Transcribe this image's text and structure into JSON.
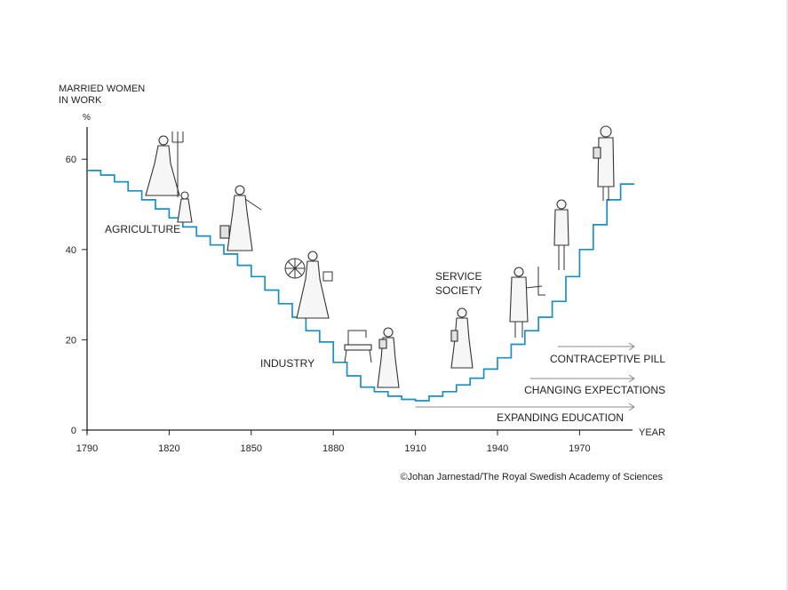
{
  "chart_data": {
    "type": "line",
    "step": true,
    "ylabel_line1": "MARRIED WOMEN",
    "ylabel_line2": "IN WORK",
    "yunit": "%",
    "xlabel": "YEAR",
    "xlim": [
      1790,
      2000
    ],
    "ylim": [
      0,
      70
    ],
    "xticks": [
      "1790",
      "1820",
      "1850",
      "1880",
      "1910",
      "1940",
      "1970"
    ],
    "yticks": [
      "0",
      "20",
      "40",
      "60"
    ],
    "line_color": "#1a8fc4",
    "series": [
      {
        "x": [
          1790,
          1795,
          1800,
          1805,
          1810,
          1815,
          1820,
          1825,
          1830,
          1835,
          1840,
          1845,
          1850,
          1855,
          1860,
          1865,
          1870,
          1875,
          1880,
          1885,
          1890,
          1895,
          1900,
          1905,
          1910,
          1915,
          1920,
          1925,
          1930,
          1935,
          1940,
          1945,
          1950,
          1955,
          1960,
          1965,
          1970,
          1975,
          1980,
          1985
        ],
        "y": [
          57.5,
          56.5,
          55,
          53,
          51,
          49,
          47,
          45,
          43,
          41,
          39,
          36.5,
          34,
          31,
          28,
          25,
          22,
          19.5,
          15,
          12,
          9.5,
          8.5,
          7.5,
          6.8,
          6.5,
          7.5,
          8.5,
          10,
          11.5,
          13.5,
          16,
          19,
          22,
          25,
          28.5,
          34,
          40,
          45.5,
          51,
          54.5
        ]
      }
    ],
    "annotations": [
      {
        "text": "AGRICULTURE",
        "x": 1818,
        "y": 45
      },
      {
        "text": "INDUSTRY",
        "x": 1872,
        "y": 15
      },
      {
        "text_line1": "SERVICE",
        "text_line2": "SOCIETY",
        "x": 1930,
        "y": 31
      }
    ],
    "arrows": [
      {
        "label": "CONTRACEPTIVE PILL",
        "x_start": 1962,
        "x_end": 1990
      },
      {
        "label": "CHANGING EXPECTATIONS",
        "x_start": 1952,
        "x_end": 1990
      },
      {
        "label": "EXPANDING EDUCATION",
        "x_start": 1910,
        "x_end": 1990
      }
    ]
  },
  "credit": "©Johan Jarnestad/The Royal Swedish Academy of Sciences"
}
